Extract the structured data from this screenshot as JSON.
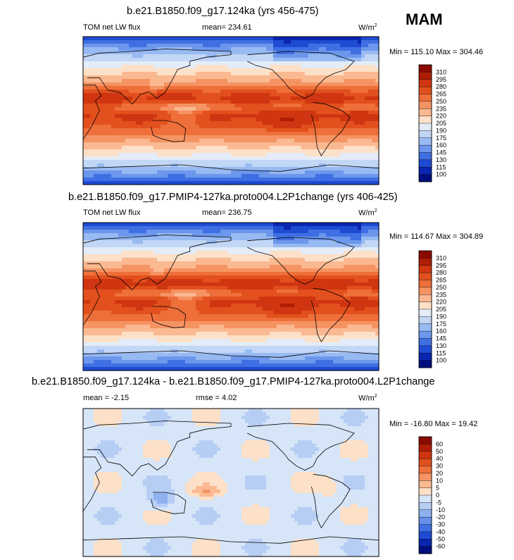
{
  "season": "MAM",
  "units_base": "W/m",
  "units_exp": "2",
  "chart_data": [
    {
      "type": "heatmap",
      "title": "b.e21.B1850.f09_g17.124ka (yrs 456-475)",
      "left_label": "TOM net LW flux",
      "center_label": "mean= 234.61",
      "minmax": "Min = 115.10 Max = 304.46",
      "mean": 234.61,
      "min": 115.1,
      "max": 304.46,
      "colorbar_levels": [
        "310",
        "295",
        "280",
        "265",
        "250",
        "235",
        "220",
        "205",
        "190",
        "175",
        "160",
        "145",
        "130",
        "115",
        "100"
      ]
    },
    {
      "type": "heatmap",
      "title": "b.e21.B1850.f09_g17.PMIP4-127ka.proto004.L2P1change (yrs 406-425)",
      "left_label": "TOM net LW flux",
      "center_label": "mean= 236.75",
      "minmax": "Min = 114.67 Max = 304.89",
      "mean": 236.75,
      "min": 114.67,
      "max": 304.89,
      "colorbar_levels": [
        "310",
        "295",
        "280",
        "265",
        "250",
        "235",
        "220",
        "205",
        "190",
        "175",
        "160",
        "145",
        "130",
        "115",
        "100"
      ]
    },
    {
      "type": "heatmap",
      "title": "b.e21.B1850.f09_g17.124ka - b.e21.B1850.f09_g17.PMIP4-127ka.proto004.L2P1change",
      "left_label": "mean =  -2.15",
      "center_label": "rmse =   4.02",
      "minmax": "Min = -16.80 Max =  19.42",
      "mean": -2.15,
      "rmse": 4.02,
      "min": -16.8,
      "max": 19.42,
      "colorbar_levels": [
        "60",
        "50",
        "40",
        "30",
        "20",
        "10",
        "5",
        "0",
        "-5",
        "-10",
        "-20",
        "-30",
        "-40",
        "-50",
        "-60"
      ]
    }
  ],
  "colors": {
    "abs_scale": [
      "#8b0a00",
      "#b01d05",
      "#cf3510",
      "#e2501d",
      "#ee6f3a",
      "#f69363",
      "#fab991",
      "#fde0c8",
      "#e3ecf8",
      "#c2d6f5",
      "#98baf2",
      "#6c97ec",
      "#3f6fe3",
      "#1e4bd2",
      "#0a25b0",
      "#000e7e"
    ],
    "diff_scale": [
      "#8b0a00",
      "#b01d05",
      "#cf3510",
      "#e2501d",
      "#ee6f3a",
      "#f69363",
      "#fab991",
      "#fde0c8",
      "#d6e5f7",
      "#b6cdf4",
      "#8eb1f0",
      "#6690ea",
      "#3f6fe3",
      "#1e4bd2",
      "#0a25b0",
      "#000e7e"
    ]
  }
}
